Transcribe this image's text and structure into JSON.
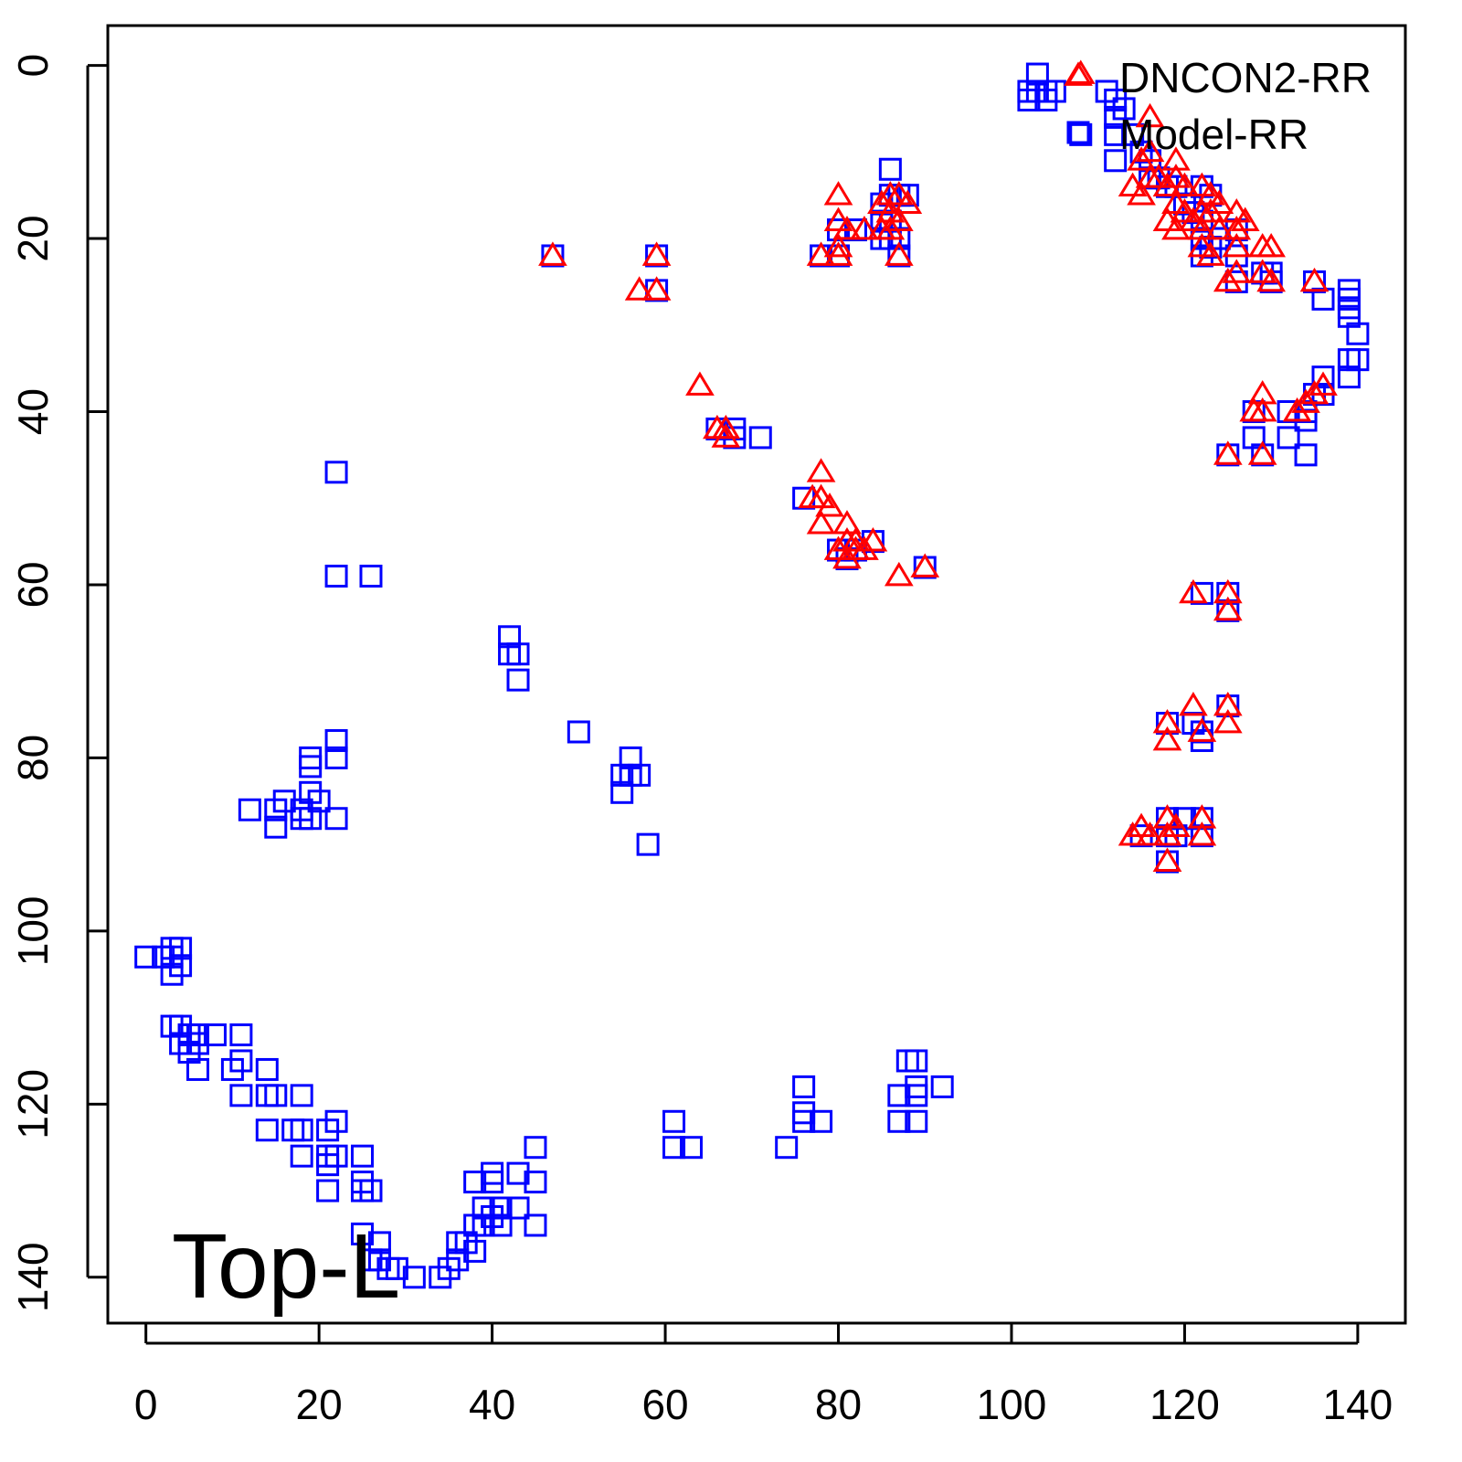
{
  "chart_data": {
    "type": "scatter",
    "annotation": "Top-L",
    "legend": "top-right",
    "xlim": [
      -4.4,
      145.5
    ],
    "ylim": [
      145.3,
      -4.6
    ],
    "xticks": [
      0,
      20,
      40,
      60,
      80,
      100,
      120,
      140
    ],
    "yticks": [
      0,
      20,
      40,
      60,
      80,
      100,
      120,
      140
    ],
    "series": [
      {
        "name": "DNCON2-RR",
        "color": "#ff0000",
        "marker": "triangle",
        "x": [
          47,
          57,
          59,
          59,
          64,
          66,
          67,
          67,
          78,
          77,
          78,
          79,
          78,
          80,
          81,
          81,
          82,
          82,
          83,
          84,
          81,
          87,
          90,
          80,
          80,
          80,
          80,
          78,
          81,
          83,
          85,
          85,
          86,
          86,
          86,
          87,
          87,
          87,
          88,
          108,
          116,
          115,
          116,
          116,
          115,
          114,
          117,
          118,
          118,
          119,
          119,
          119,
          119,
          120,
          120,
          121,
          122,
          122,
          122,
          123,
          123,
          124,
          124,
          122,
          123,
          126,
          126,
          126,
          127,
          126,
          125,
          129,
          130,
          129,
          130,
          135,
          136,
          135,
          134,
          133,
          129,
          129,
          128,
          125,
          129,
          121,
          125,
          125,
          121,
          122,
          125,
          125,
          118,
          118,
          114,
          115,
          116,
          118,
          119,
          118,
          122,
          122,
          118
        ],
        "values": [
          22,
          26,
          22,
          26,
          37,
          42,
          42,
          43,
          47,
          50,
          50,
          51,
          53,
          56,
          53,
          55,
          55,
          56,
          56,
          55,
          57,
          59,
          58,
          15,
          18,
          21,
          22,
          22,
          19,
          19,
          16,
          19,
          15,
          17,
          19,
          15,
          18,
          22,
          16,
          1,
          6,
          11,
          10,
          13,
          15,
          14,
          13,
          14,
          18,
          11,
          13,
          16,
          19,
          14,
          17,
          18,
          14,
          17,
          19,
          15,
          17,
          16,
          19,
          21,
          22,
          17,
          19,
          21,
          18,
          24,
          25,
          21,
          21,
          24,
          25,
          25,
          37,
          38,
          39,
          40,
          38,
          40,
          40,
          45,
          45,
          61,
          61,
          63,
          74,
          77,
          74,
          76,
          76,
          78,
          89,
          88,
          89,
          87,
          88,
          89,
          87,
          89,
          92
        ]
      },
      {
        "name": "Model-RR",
        "color": "#0000ff",
        "marker": "square",
        "x": [
          103,
          102,
          103,
          104,
          105,
          102,
          104,
          111,
          112,
          113,
          112,
          112,
          108,
          112,
          114,
          115,
          116,
          116,
          117,
          118,
          119,
          120,
          121,
          122,
          123,
          122,
          122,
          122,
          123,
          124,
          126,
          126,
          126,
          129,
          130,
          130,
          135,
          136,
          139,
          139,
          139,
          139,
          140,
          139,
          140,
          139,
          136,
          136,
          135,
          134,
          134,
          132,
          132,
          128,
          128,
          134,
          125,
          129,
          86,
          86,
          85,
          87,
          88,
          85,
          86,
          85,
          86,
          87,
          82,
          80,
          78,
          80,
          87,
          47,
          59,
          59,
          66,
          68,
          68,
          71,
          76,
          80,
          81,
          82,
          84,
          90,
          122,
          125,
          125,
          118,
          121,
          122,
          122,
          125,
          115,
          118,
          120,
          118,
          119,
          122,
          122,
          118,
          22,
          22,
          26,
          42,
          42,
          43,
          43,
          50,
          56,
          55,
          56,
          57,
          55,
          58,
          22,
          22,
          19,
          19,
          19,
          18,
          20,
          12,
          15,
          15,
          16,
          18,
          19,
          22,
          0,
          3,
          4,
          3,
          4,
          3,
          2,
          3,
          4,
          4,
          5,
          6,
          5,
          6,
          6,
          8,
          11,
          10,
          11,
          11,
          14,
          14,
          15,
          14,
          17,
          18,
          18,
          18,
          21,
          22,
          21,
          21,
          21,
          22,
          25,
          25,
          25,
          26,
          25,
          27,
          28,
          26,
          27,
          29,
          31,
          34,
          35,
          36,
          36,
          37,
          38,
          38,
          38,
          39,
          39,
          40,
          40,
          40,
          41,
          41,
          43,
          43,
          45,
          45,
          45,
          61,
          61,
          63,
          74,
          76,
          76,
          76,
          78,
          87,
          87,
          88,
          89,
          89,
          89,
          89,
          92
        ],
        "values": [
          1,
          3,
          3,
          3,
          3,
          4,
          4,
          3,
          4,
          5,
          6,
          8,
          8,
          11,
          8,
          10,
          11,
          13,
          13,
          14,
          14,
          16,
          17,
          14,
          15,
          18,
          20,
          22,
          21,
          20,
          19,
          22,
          25,
          24,
          24,
          25,
          25,
          27,
          26,
          27,
          28,
          29,
          31,
          34,
          34,
          36,
          36,
          38,
          38,
          40,
          41,
          40,
          43,
          40,
          43,
          45,
          45,
          45,
          12,
          15,
          16,
          15,
          15,
          18,
          18,
          20,
          20,
          20,
          19,
          19,
          22,
          22,
          22,
          22,
          22,
          26,
          42,
          42,
          43,
          43,
          50,
          56,
          57,
          56,
          55,
          58,
          61,
          61,
          63,
          76,
          76,
          77,
          78,
          74,
          89,
          87,
          87,
          89,
          89,
          87,
          89,
          92,
          47,
          59,
          59,
          66,
          68,
          68,
          71,
          77,
          80,
          82,
          82,
          82,
          84,
          90,
          78,
          80,
          80,
          81,
          84,
          86,
          85,
          86,
          86,
          88,
          85,
          87,
          87,
          87,
          103,
          102,
          102,
          103,
          104,
          105,
          103,
          111,
          111,
          113,
          112,
          113,
          114,
          112,
          116,
          112,
          112,
          116,
          115,
          119,
          116,
          119,
          119,
          123,
          123,
          119,
          123,
          126,
          123,
          122,
          126,
          127,
          130,
          126,
          126,
          129,
          130,
          130,
          135,
          136,
          139,
          138,
          138,
          139,
          140,
          140,
          139,
          136,
          138,
          136,
          134,
          137,
          129,
          132,
          134,
          129,
          133,
          128,
          132,
          134,
          128,
          132,
          125,
          129,
          134,
          122,
          125,
          125,
          125,
          118,
          121,
          122,
          122,
          119,
          122,
          115,
          115,
          118,
          119,
          122,
          118
        ]
      }
    ]
  }
}
